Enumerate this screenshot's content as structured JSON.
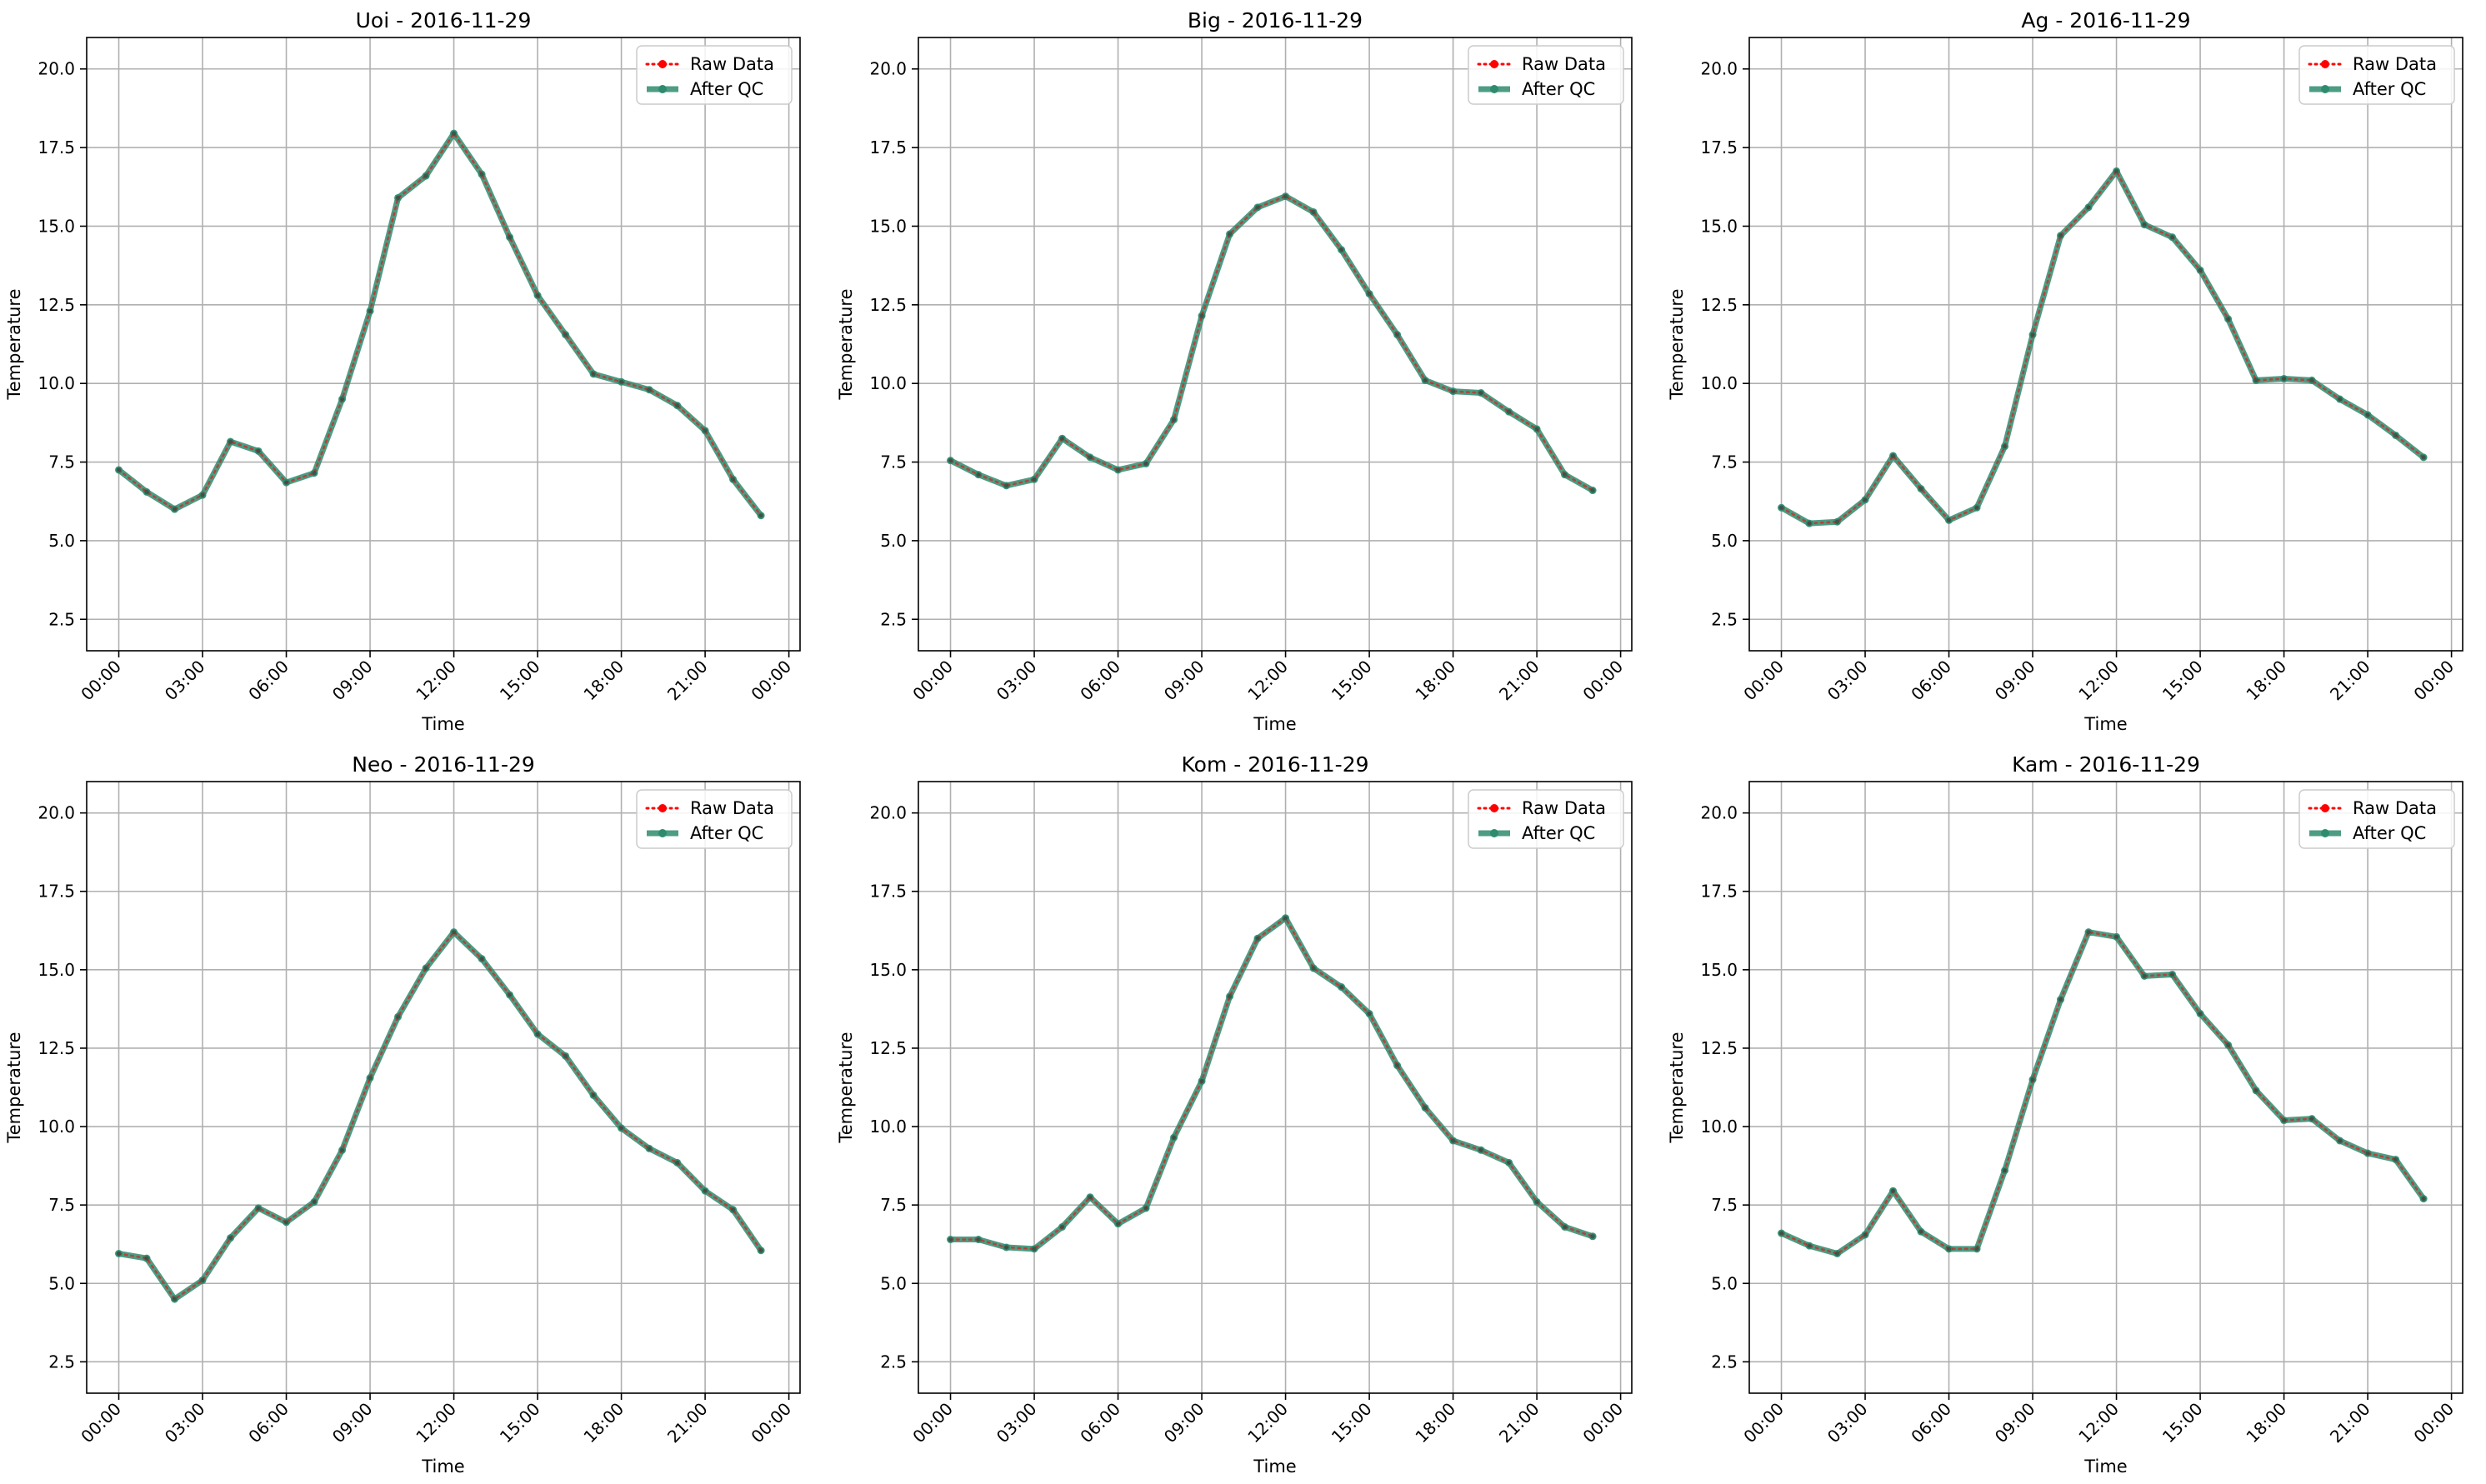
{
  "colors": {
    "raw": "#ff0000",
    "qc": "#2e8b6e",
    "grid": "#b0b0b0",
    "axis": "#000000"
  },
  "legend": {
    "location": "top-right",
    "entries": [
      "Raw Data",
      "After QC"
    ]
  },
  "chart_data": [
    {
      "type": "line",
      "title": "Uoi - 2016-11-29",
      "xlabel": "Time",
      "ylabel": "Temperature",
      "x_ticks": [
        "00:00",
        "03:00",
        "06:00",
        "09:00",
        "12:00",
        "15:00",
        "18:00",
        "21:00",
        "00:00"
      ],
      "y_ticks": [
        "2.5",
        "5.0",
        "7.5",
        "10.0",
        "12.5",
        "15.0",
        "17.5",
        "20.0"
      ],
      "ylim": [
        1.5,
        21.0
      ],
      "grid": true,
      "series": [
        {
          "name": "Raw Data",
          "values": [
            7.25,
            6.55,
            6.0,
            6.45,
            8.15,
            7.85,
            6.85,
            7.15,
            9.5,
            12.3,
            15.9,
            16.6,
            17.95,
            16.65,
            14.65,
            12.8,
            11.55,
            10.3,
            10.05,
            9.8,
            9.3,
            8.5,
            6.95,
            5.8
          ]
        },
        {
          "name": "After QC",
          "values": [
            7.25,
            6.55,
            6.0,
            6.45,
            8.15,
            7.85,
            6.85,
            7.15,
            9.5,
            12.3,
            15.9,
            16.6,
            17.95,
            16.65,
            14.65,
            12.8,
            11.55,
            10.3,
            10.05,
            9.8,
            9.3,
            8.5,
            6.95,
            5.8
          ]
        }
      ]
    },
    {
      "type": "line",
      "title": "Big - 2016-11-29",
      "xlabel": "Time",
      "ylabel": "Temperature",
      "x_ticks": [
        "00:00",
        "03:00",
        "06:00",
        "09:00",
        "12:00",
        "15:00",
        "18:00",
        "21:00",
        "00:00"
      ],
      "y_ticks": [
        "2.5",
        "5.0",
        "7.5",
        "10.0",
        "12.5",
        "15.0",
        "17.5",
        "20.0"
      ],
      "ylim": [
        1.5,
        21.0
      ],
      "grid": true,
      "series": [
        {
          "name": "Raw Data",
          "values": [
            7.55,
            7.1,
            6.75,
            6.95,
            8.25,
            7.65,
            7.25,
            7.45,
            8.85,
            12.15,
            14.75,
            15.6,
            15.95,
            15.45,
            14.25,
            12.85,
            11.55,
            10.1,
            9.75,
            9.7,
            9.1,
            8.55,
            7.1,
            6.6
          ]
        },
        {
          "name": "After QC",
          "values": [
            7.55,
            7.1,
            6.75,
            6.95,
            8.25,
            7.65,
            7.25,
            7.45,
            8.85,
            12.15,
            14.75,
            15.6,
            15.95,
            15.45,
            14.25,
            12.85,
            11.55,
            10.1,
            9.75,
            9.7,
            9.1,
            8.55,
            7.1,
            6.6
          ]
        }
      ]
    },
    {
      "type": "line",
      "title": "Ag - 2016-11-29",
      "xlabel": "Time",
      "ylabel": "Temperature",
      "x_ticks": [
        "00:00",
        "03:00",
        "06:00",
        "09:00",
        "12:00",
        "15:00",
        "18:00",
        "21:00",
        "00:00"
      ],
      "y_ticks": [
        "2.5",
        "5.0",
        "7.5",
        "10.0",
        "12.5",
        "15.0",
        "17.5",
        "20.0"
      ],
      "ylim": [
        1.5,
        21.0
      ],
      "grid": true,
      "series": [
        {
          "name": "Raw Data",
          "values": [
            6.05,
            5.55,
            5.6,
            6.3,
            7.7,
            6.65,
            5.65,
            6.05,
            8.0,
            11.55,
            14.7,
            15.6,
            16.75,
            15.05,
            14.65,
            13.6,
            12.05,
            10.1,
            10.15,
            10.1,
            9.5,
            9.0,
            8.35,
            7.65
          ]
        },
        {
          "name": "After QC",
          "values": [
            6.05,
            5.55,
            5.6,
            6.3,
            7.7,
            6.65,
            5.65,
            6.05,
            8.0,
            11.55,
            14.7,
            15.6,
            16.75,
            15.05,
            14.65,
            13.6,
            12.05,
            10.1,
            10.15,
            10.1,
            9.5,
            9.0,
            8.35,
            7.65
          ]
        }
      ]
    },
    {
      "type": "line",
      "title": "Neo - 2016-11-29",
      "xlabel": "Time",
      "ylabel": "Temperature",
      "x_ticks": [
        "00:00",
        "03:00",
        "06:00",
        "09:00",
        "12:00",
        "15:00",
        "18:00",
        "21:00",
        "00:00"
      ],
      "y_ticks": [
        "2.5",
        "5.0",
        "7.5",
        "10.0",
        "12.5",
        "15.0",
        "17.5",
        "20.0"
      ],
      "ylim": [
        1.5,
        21.0
      ],
      "grid": true,
      "series": [
        {
          "name": "Raw Data",
          "values": [
            5.95,
            5.8,
            4.5,
            5.1,
            6.45,
            7.4,
            6.95,
            7.6,
            9.25,
            11.55,
            13.5,
            15.05,
            16.2,
            15.35,
            14.2,
            12.95,
            12.25,
            11.0,
            9.95,
            9.3,
            8.85,
            7.95,
            7.35,
            6.05
          ]
        },
        {
          "name": "After QC",
          "values": [
            5.95,
            5.8,
            4.5,
            5.1,
            6.45,
            7.4,
            6.95,
            7.6,
            9.25,
            11.55,
            13.5,
            15.05,
            16.2,
            15.35,
            14.2,
            12.95,
            12.25,
            11.0,
            9.95,
            9.3,
            8.85,
            7.95,
            7.35,
            6.05
          ]
        }
      ]
    },
    {
      "type": "line",
      "title": "Kom - 2016-11-29",
      "xlabel": "Time",
      "ylabel": "Temperature",
      "x_ticks": [
        "00:00",
        "03:00",
        "06:00",
        "09:00",
        "12:00",
        "15:00",
        "18:00",
        "21:00",
        "00:00"
      ],
      "y_ticks": [
        "2.5",
        "5.0",
        "7.5",
        "10.0",
        "12.5",
        "15.0",
        "17.5",
        "20.0"
      ],
      "ylim": [
        1.5,
        21.0
      ],
      "grid": true,
      "series": [
        {
          "name": "Raw Data",
          "values": [
            6.4,
            6.4,
            6.15,
            6.1,
            6.8,
            7.75,
            6.9,
            7.4,
            9.65,
            11.45,
            14.15,
            16.0,
            16.65,
            15.05,
            14.45,
            13.6,
            11.95,
            10.6,
            9.55,
            9.25,
            8.85,
            7.6,
            6.8,
            6.5
          ]
        },
        {
          "name": "After QC",
          "values": [
            6.4,
            6.4,
            6.15,
            6.1,
            6.8,
            7.75,
            6.9,
            7.4,
            9.65,
            11.45,
            14.15,
            16.0,
            16.65,
            15.05,
            14.45,
            13.6,
            11.95,
            10.6,
            9.55,
            9.25,
            8.85,
            7.6,
            6.8,
            6.5
          ]
        }
      ]
    },
    {
      "type": "line",
      "title": "Kam - 2016-11-29",
      "xlabel": "Time",
      "ylabel": "Temperature",
      "x_ticks": [
        "00:00",
        "03:00",
        "06:00",
        "09:00",
        "12:00",
        "15:00",
        "18:00",
        "21:00",
        "00:00"
      ],
      "y_ticks": [
        "2.5",
        "5.0",
        "7.5",
        "10.0",
        "12.5",
        "15.0",
        "17.5",
        "20.0"
      ],
      "ylim": [
        1.5,
        21.0
      ],
      "grid": true,
      "series": [
        {
          "name": "Raw Data",
          "values": [
            6.6,
            6.2,
            5.95,
            6.55,
            7.95,
            6.65,
            6.1,
            6.1,
            8.6,
            11.5,
            14.05,
            16.2,
            16.05,
            14.8,
            14.85,
            13.6,
            12.6,
            11.15,
            10.2,
            10.25,
            9.55,
            9.15,
            8.95,
            7.7
          ]
        },
        {
          "name": "After QC",
          "values": [
            6.6,
            6.2,
            5.95,
            6.55,
            7.95,
            6.65,
            6.1,
            6.1,
            8.6,
            11.5,
            14.05,
            16.2,
            16.05,
            14.8,
            14.85,
            13.6,
            12.6,
            11.15,
            10.2,
            10.25,
            9.55,
            9.15,
            8.95,
            7.7
          ]
        }
      ]
    }
  ]
}
